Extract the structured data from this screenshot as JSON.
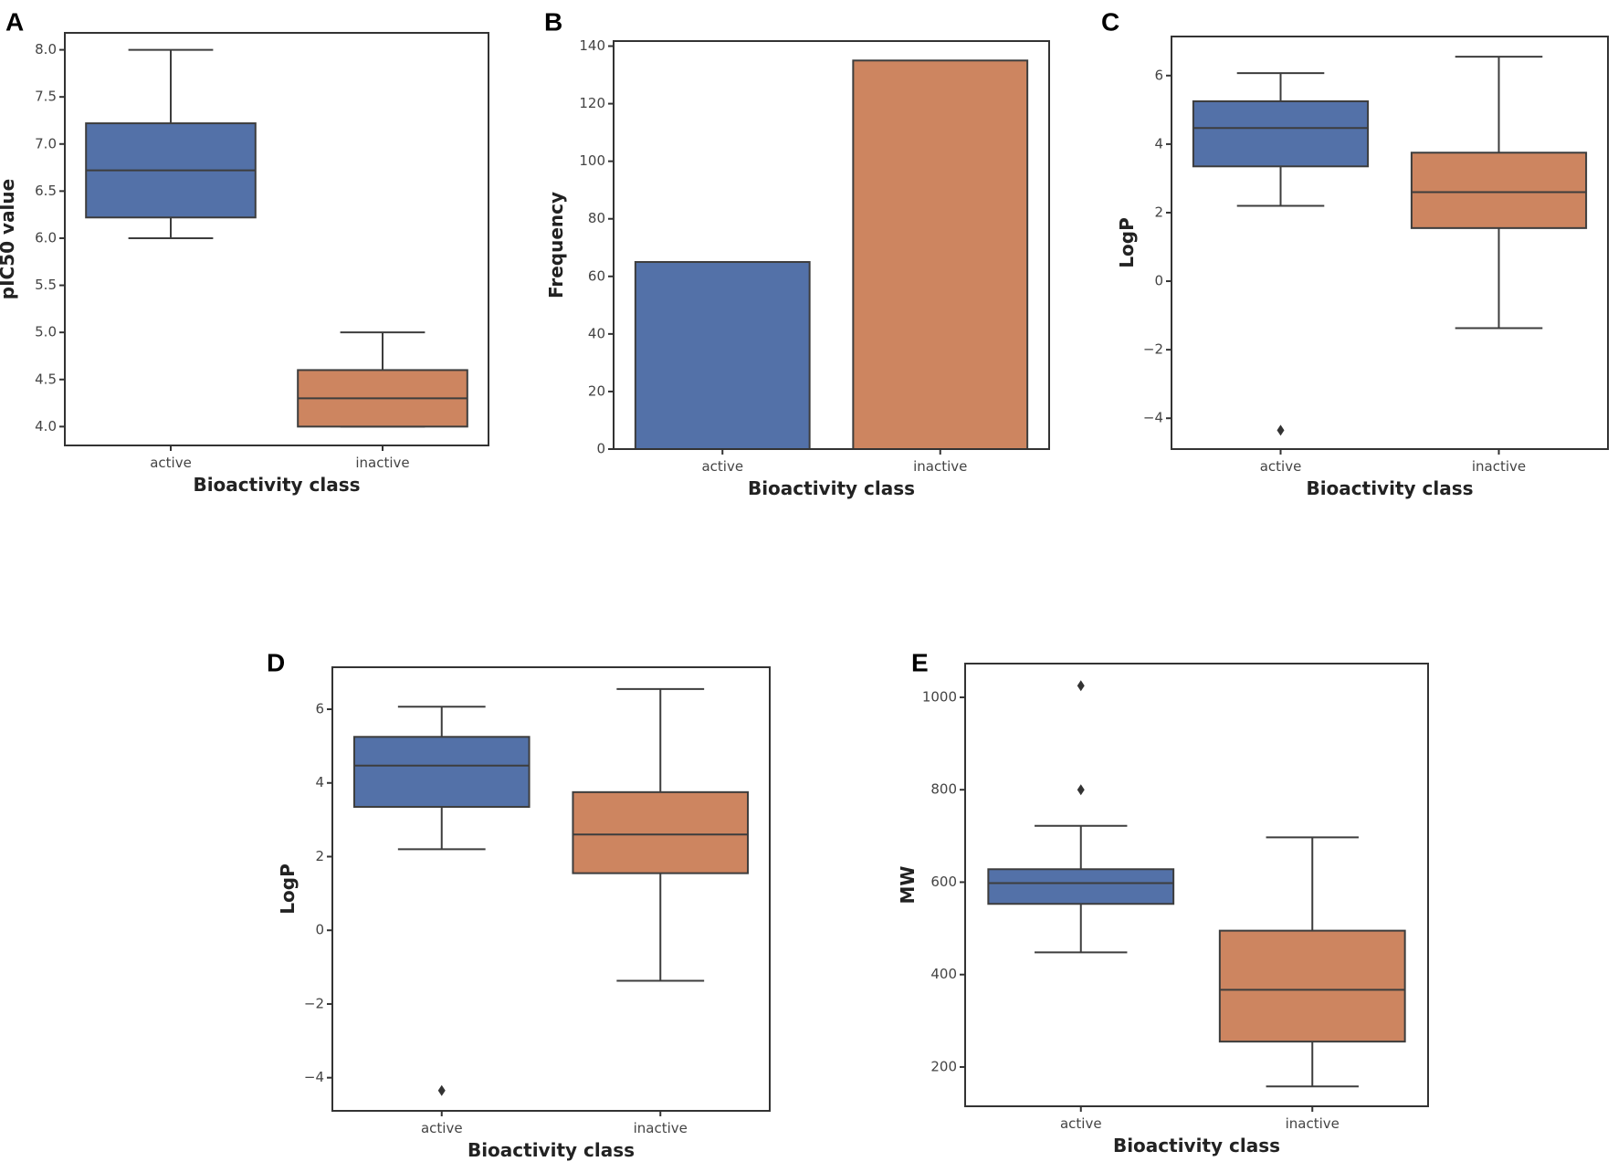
{
  "colors": {
    "active": "#5371a8",
    "inactive": "#cd8560",
    "edge": "#3d3d3d"
  },
  "chart_data": [
    {
      "panel": "A",
      "type": "box",
      "xlabel": "Bioactivity class",
      "ylabel": "pIC50 value",
      "categories": [
        "active",
        "inactive"
      ],
      "ylim": [
        3.8,
        8.18
      ],
      "yticks": [
        4.0,
        4.5,
        5.0,
        5.5,
        6.0,
        6.5,
        7.0,
        7.5,
        8.0
      ],
      "ytick_labels": [
        "4.0",
        "4.5",
        "5.0",
        "5.5",
        "6.0",
        "6.5",
        "7.0",
        "7.5",
        "8.0"
      ],
      "boxes": [
        {
          "whisker_low": 6.0,
          "q1": 6.22,
          "median": 6.72,
          "q3": 7.22,
          "whisker_high": 8.0,
          "outliers": []
        },
        {
          "whisker_low": 4.0,
          "q1": 4.0,
          "median": 4.3,
          "q3": 4.6,
          "whisker_high": 5.0,
          "outliers": []
        }
      ]
    },
    {
      "panel": "B",
      "type": "bar",
      "xlabel": "Bioactivity class",
      "ylabel": "Frequency",
      "categories": [
        "active",
        "inactive"
      ],
      "ylim": [
        0,
        141.75
      ],
      "yticks": [
        0,
        20,
        40,
        60,
        80,
        100,
        120,
        140
      ],
      "ytick_labels": [
        "0",
        "20",
        "40",
        "60",
        "80",
        "100",
        "120",
        "140"
      ],
      "values": [
        65,
        135
      ]
    },
    {
      "panel": "C",
      "type": "box",
      "xlabel": "Bioactivity class",
      "ylabel": "LogP",
      "categories": [
        "active",
        "inactive"
      ],
      "ylim": [
        -4.9,
        7.14
      ],
      "yticks": [
        -4,
        -2,
        0,
        2,
        4,
        6
      ],
      "ytick_labels": [
        "−4",
        "−2",
        "0",
        "2",
        "4",
        "6"
      ],
      "boxes": [
        {
          "whisker_low": 2.2,
          "q1": 3.35,
          "median": 4.47,
          "q3": 5.25,
          "whisker_high": 6.07,
          "outliers": [
            -4.35
          ]
        },
        {
          "whisker_low": -1.37,
          "q1": 1.55,
          "median": 2.6,
          "q3": 3.75,
          "whisker_high": 6.55,
          "outliers": []
        }
      ]
    },
    {
      "panel": "D",
      "type": "box",
      "xlabel": "Bioactivity class",
      "ylabel": "LogP",
      "categories": [
        "active",
        "inactive"
      ],
      "ylim": [
        -4.9,
        7.14
      ],
      "yticks": [
        -4,
        -2,
        0,
        2,
        4,
        6
      ],
      "ytick_labels": [
        "−4",
        "−2",
        "0",
        "2",
        "4",
        "6"
      ],
      "boxes": [
        {
          "whisker_low": 2.2,
          "q1": 3.35,
          "median": 4.47,
          "q3": 5.25,
          "whisker_high": 6.07,
          "outliers": [
            -4.35
          ]
        },
        {
          "whisker_low": -1.37,
          "q1": 1.55,
          "median": 2.6,
          "q3": 3.75,
          "whisker_high": 6.55,
          "outliers": []
        }
      ]
    },
    {
      "panel": "E",
      "type": "box",
      "xlabel": "Bioactivity class",
      "ylabel": "MW",
      "categories": [
        "active",
        "inactive"
      ],
      "ylim": [
        115,
        1073
      ],
      "yticks": [
        200,
        400,
        600,
        800,
        1000
      ],
      "ytick_labels": [
        "200",
        "400",
        "600",
        "800",
        "1000"
      ],
      "boxes": [
        {
          "whisker_low": 448,
          "q1": 553,
          "median": 598,
          "q3": 628,
          "whisker_high": 722,
          "outliers": [
            800,
            1025
          ]
        },
        {
          "whisker_low": 158,
          "q1": 255,
          "median": 367,
          "q3": 495,
          "whisker_high": 697,
          "outliers": []
        }
      ]
    }
  ]
}
